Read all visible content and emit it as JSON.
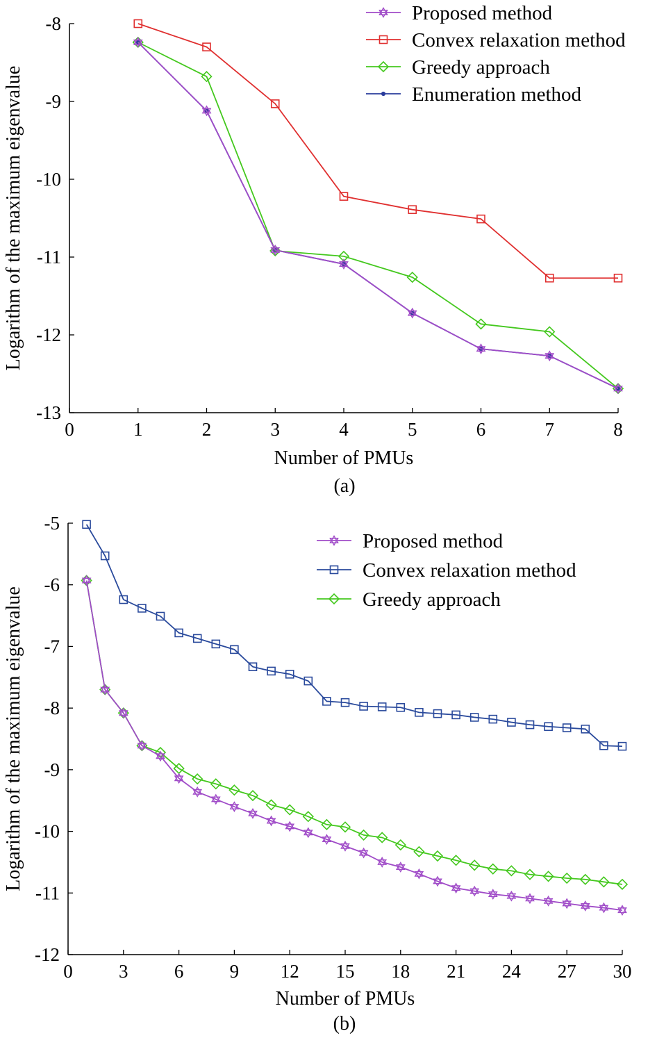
{
  "chart_data": [
    {
      "type": "line",
      "caption": "(a)",
      "xlabel": "Number of PMUs",
      "ylabel": "Logarithm of the maximum eigenvalue",
      "xlim": [
        0,
        8
      ],
      "ylim": [
        -13,
        -8
      ],
      "xticks": [
        "0",
        "1",
        "2",
        "3",
        "4",
        "5",
        "6",
        "7",
        "8"
      ],
      "yticks": [
        "-8",
        "-9",
        "-10",
        "-11",
        "-12",
        "-13"
      ],
      "legend_position": "top-right",
      "grid": false,
      "x": [
        1,
        2,
        3,
        4,
        5,
        6,
        7,
        8
      ],
      "series": [
        {
          "name": "Proposed method",
          "color": "#a04cc8",
          "marker": "star",
          "values": [
            -8.24,
            -9.12,
            -10.91,
            -11.09,
            -11.72,
            -12.18,
            -12.27,
            -12.69
          ]
        },
        {
          "name": "Convex relaxation method",
          "color": "#e03030",
          "marker": "square",
          "values": [
            -8.0,
            -8.3,
            -9.03,
            -10.22,
            -10.39,
            -10.51,
            -11.27,
            -11.27
          ]
        },
        {
          "name": "Greedy approach",
          "color": "#44c81e",
          "marker": "diamond",
          "values": [
            -8.24,
            -8.68,
            -10.92,
            -10.99,
            -11.26,
            -11.86,
            -11.96,
            -12.69
          ]
        },
        {
          "name": "Enumeration method",
          "color": "#2a3c9c",
          "marker": "dot",
          "values": [
            -8.24,
            -9.12,
            -10.91,
            -11.09,
            -11.72,
            -12.18,
            -12.27,
            -12.69
          ]
        }
      ]
    },
    {
      "type": "line",
      "caption": "(b)",
      "xlabel": "Number of PMUs",
      "ylabel": "Logarithm of the maximum eigenvalue",
      "xlim": [
        0,
        30
      ],
      "ylim": [
        -12,
        -5
      ],
      "xticks": [
        "0",
        "3",
        "6",
        "9",
        "12",
        "15",
        "18",
        "21",
        "24",
        "27",
        "30"
      ],
      "yticks": [
        "-5",
        "-6",
        "-7",
        "-8",
        "-9",
        "-10",
        "-11",
        "-12"
      ],
      "legend_position": "top-right",
      "grid": false,
      "x": [
        1,
        2,
        3,
        4,
        5,
        6,
        7,
        8,
        9,
        10,
        11,
        12,
        13,
        14,
        15,
        16,
        17,
        18,
        19,
        20,
        21,
        22,
        23,
        24,
        25,
        26,
        27,
        28,
        29,
        30
      ],
      "series": [
        {
          "name": "Proposed method",
          "color": "#a04cc8",
          "marker": "star",
          "values": [
            -5.93,
            -7.7,
            -8.08,
            -8.61,
            -8.78,
            -9.14,
            -9.36,
            -9.48,
            -9.6,
            -9.71,
            -9.83,
            -9.92,
            -10.02,
            -10.13,
            -10.24,
            -10.35,
            -10.5,
            -10.58,
            -10.69,
            -10.81,
            -10.92,
            -10.97,
            -11.02,
            -11.05,
            -11.09,
            -11.13,
            -11.17,
            -11.21,
            -11.24,
            -11.28
          ]
        },
        {
          "name": "Convex relaxation method",
          "color": "#2a4a9c",
          "marker": "square",
          "values": [
            -5.02,
            -5.53,
            -6.24,
            -6.38,
            -6.51,
            -6.78,
            -6.87,
            -6.96,
            -7.05,
            -7.33,
            -7.4,
            -7.45,
            -7.56,
            -7.89,
            -7.91,
            -7.97,
            -7.98,
            -7.99,
            -8.07,
            -8.09,
            -8.11,
            -8.15,
            -8.18,
            -8.23,
            -8.27,
            -8.3,
            -8.32,
            -8.34,
            -8.61,
            -8.62
          ]
        },
        {
          "name": "Greedy approach",
          "color": "#44c81e",
          "marker": "diamond",
          "values": [
            -5.93,
            -7.7,
            -8.08,
            -8.61,
            -8.72,
            -8.98,
            -9.15,
            -9.23,
            -9.33,
            -9.42,
            -9.57,
            -9.65,
            -9.76,
            -9.89,
            -9.93,
            -10.06,
            -10.1,
            -10.22,
            -10.33,
            -10.4,
            -10.47,
            -10.55,
            -10.61,
            -10.64,
            -10.7,
            -10.73,
            -10.76,
            -10.78,
            -10.82,
            -10.86
          ]
        }
      ]
    }
  ]
}
